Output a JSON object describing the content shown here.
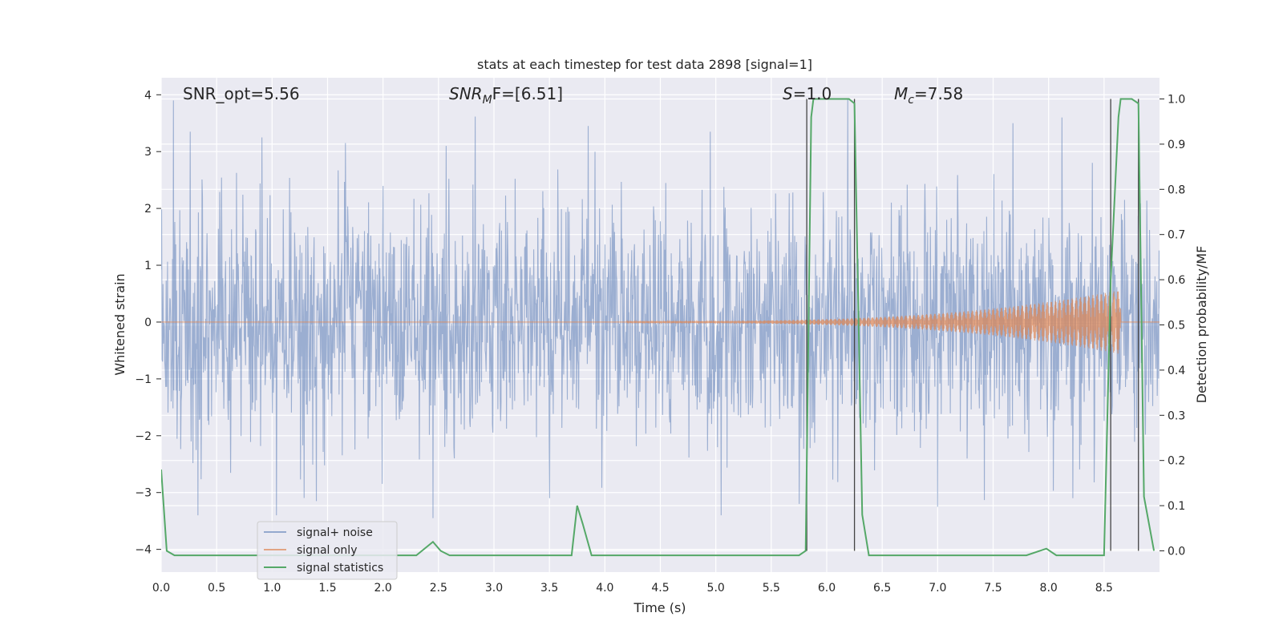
{
  "chart_data": {
    "type": "line",
    "title": "stats at each timestep for test data 2898 [signal=1]",
    "xlabel": "Time (s)",
    "ylabel": "Whitened strain",
    "ylabel_right": "Detection probability/MF",
    "xlim": [
      0.0,
      9.0
    ],
    "ylim": [
      -4.4,
      4.3
    ],
    "ylim_right": [
      -0.047,
      1.047
    ],
    "xticks": [
      "0.0",
      "0.5",
      "1.0",
      "1.5",
      "2.0",
      "2.5",
      "3.0",
      "3.5",
      "4.0",
      "4.5",
      "5.0",
      "5.5",
      "6.0",
      "6.5",
      "7.0",
      "7.5",
      "8.0",
      "8.5"
    ],
    "yticks": [
      "4",
      "3",
      "2",
      "1",
      "0",
      "−1",
      "−2",
      "−3",
      "−4"
    ],
    "yticks_right": [
      "1.0",
      "0.9",
      "0.8",
      "0.7",
      "0.6",
      "0.5",
      "0.4",
      "0.3",
      "0.2",
      "0.1",
      "0.0"
    ],
    "grid": true,
    "legend_position": "lower-left",
    "annotations": {
      "snr_opt": "SNR_opt=5.56",
      "snr_mf_base": "SNR",
      "snr_mf_sub": "M",
      "snr_mf_rest": "F=[6.51]",
      "s_base": "S",
      "s_rest": "=1.0",
      "mc_base": "M",
      "mc_sub": "c",
      "mc_rest": "=7.58"
    },
    "vertical_lines_x": [
      5.82,
      6.25,
      8.56,
      8.81
    ],
    "series": [
      {
        "name": "signal+ noise",
        "color": "#4c72b0",
        "kind": "noise",
        "band_std": 1.0,
        "spike_peaks": [
          {
            "x": 0.11,
            "y": 3.9
          },
          {
            "x": 0.26,
            "y": 3.35
          },
          {
            "x": 0.91,
            "y": 3.25
          },
          {
            "x": 1.66,
            "y": 3.15
          },
          {
            "x": 2.57,
            "y": 3.1
          },
          {
            "x": 3.85,
            "y": 3.45
          },
          {
            "x": 4.95,
            "y": 3.35
          },
          {
            "x": 7.68,
            "y": 3.5
          },
          {
            "x": 8.12,
            "y": 3.6
          },
          {
            "x": 0.33,
            "y": -3.4
          },
          {
            "x": 1.04,
            "y": -3.4
          },
          {
            "x": 2.45,
            "y": -3.45
          },
          {
            "x": 5.05,
            "y": -3.4
          },
          {
            "x": 5.75,
            "y": -3.2
          },
          {
            "x": 7.0,
            "y": -3.25
          },
          {
            "x": 8.22,
            "y": -3.1
          },
          {
            "x": 1.4,
            "y": -3.15
          },
          {
            "x": 3.5,
            "y": -3.1
          }
        ]
      },
      {
        "name": "signal only",
        "color": "#dd8452",
        "kind": "chirp",
        "x_start": 4.2,
        "x_end": 8.65,
        "peak_amp": 0.55
      },
      {
        "name": "signal statistics",
        "color": "#55a868",
        "kind": "line",
        "axis": "right",
        "x": [
          0.0,
          0.05,
          0.12,
          0.3,
          1.0,
          2.0,
          2.3,
          2.45,
          2.52,
          2.6,
          3.0,
          3.5,
          3.7,
          3.75,
          3.8,
          3.88,
          4.5,
          5.0,
          5.5,
          5.75,
          5.81,
          5.86,
          5.88,
          6.0,
          6.1,
          6.2,
          6.25,
          6.32,
          6.38,
          7.0,
          7.8,
          7.98,
          8.07,
          8.3,
          8.5,
          8.56,
          8.63,
          8.65,
          8.75,
          8.81,
          8.86,
          8.95
        ],
        "y": [
          0.18,
          0.0,
          -0.01,
          -0.01,
          -0.01,
          -0.01,
          -0.01,
          0.02,
          0.0,
          -0.01,
          -0.01,
          -0.01,
          -0.01,
          0.1,
          0.06,
          -0.01,
          -0.01,
          -0.01,
          -0.01,
          -0.01,
          0.0,
          0.96,
          1.0,
          1.0,
          1.0,
          1.0,
          0.99,
          0.08,
          -0.01,
          -0.01,
          -0.01,
          0.005,
          -0.01,
          -0.01,
          -0.01,
          0.6,
          0.96,
          1.0,
          1.0,
          0.99,
          0.12,
          0.0
        ]
      }
    ]
  }
}
